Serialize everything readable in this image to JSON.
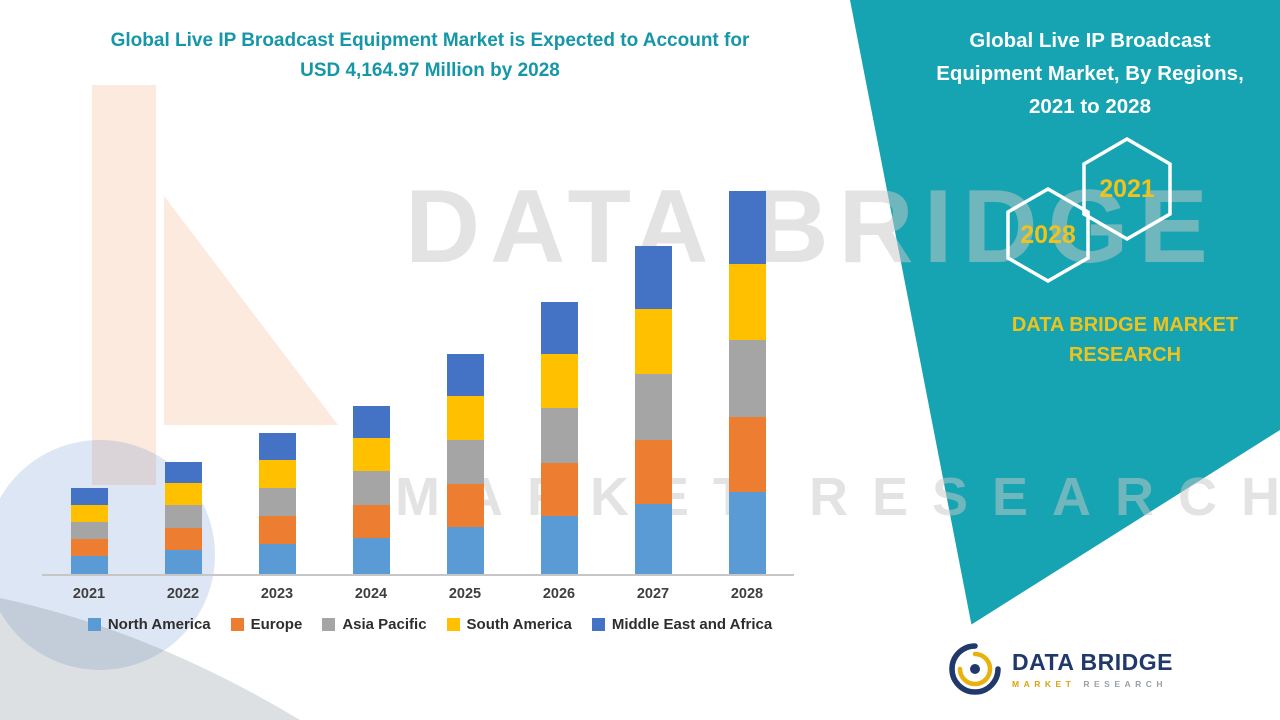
{
  "colors": {
    "accent_teal": "#16A3B2",
    "accent_yellow": "#EFC31C",
    "axis_gray": "#C6C6C6",
    "logo_navy": "#21386B"
  },
  "left": {
    "title_line1": "Global Live IP Broadcast Equipment Market is Expected to Account for",
    "title_line2": "USD 4,164.97 Million by 2028"
  },
  "chart_data": {
    "type": "bar",
    "stacked": true,
    "title": "Global Live IP Broadcast Equipment Market is Expected to Account for USD 4,164.97 Million by 2028",
    "unit": "USD Million",
    "categories": [
      "2021",
      "2022",
      "2023",
      "2024",
      "2025",
      "2026",
      "2027",
      "2028"
    ],
    "series": [
      {
        "name": "North America",
        "color": "#5B9BD5",
        "values": [
          200,
          260,
          330,
          390,
          510,
          635,
          765,
          890
        ]
      },
      {
        "name": "Europe",
        "color": "#ED7D31",
        "values": [
          185,
          240,
          300,
          355,
          465,
          580,
          700,
          815
        ]
      },
      {
        "name": "Asia Pacific",
        "color": "#A5A5A5",
        "values": [
          190,
          245,
          310,
          365,
          480,
          595,
          715,
          835
        ]
      },
      {
        "name": "South America",
        "color": "#FFC000",
        "values": [
          190,
          240,
          305,
          360,
          475,
          590,
          710,
          830
        ]
      },
      {
        "name": "Middle East and Africa",
        "color": "#4472C4",
        "values": [
          185,
          230,
          295,
          345,
          460,
          570,
          685,
          794.97
        ]
      }
    ],
    "totals": [
      950,
      1215,
      1540,
      1815,
      2390,
      2970,
      3575,
      4164.97
    ],
    "ylim": [
      0,
      4200
    ],
    "grid": false,
    "legend_position": "bottom"
  },
  "right_panel": {
    "title_lines": [
      "Global Live IP Broadcast",
      "Equipment Market, By Regions,",
      "2021 to 2028"
    ],
    "hexagons": [
      {
        "label": "2028"
      },
      {
        "label": "2021"
      }
    ],
    "brand_line1": "DATA BRIDGE MARKET",
    "brand_line2": "RESEARCH"
  },
  "watermark": {
    "line1": "DATA BRIDGE",
    "line2": "MARKET RESEARCH"
  },
  "logo": {
    "name": "DATA BRIDGE",
    "sub1": "MARKET",
    "sub2": "RESEARCH"
  }
}
